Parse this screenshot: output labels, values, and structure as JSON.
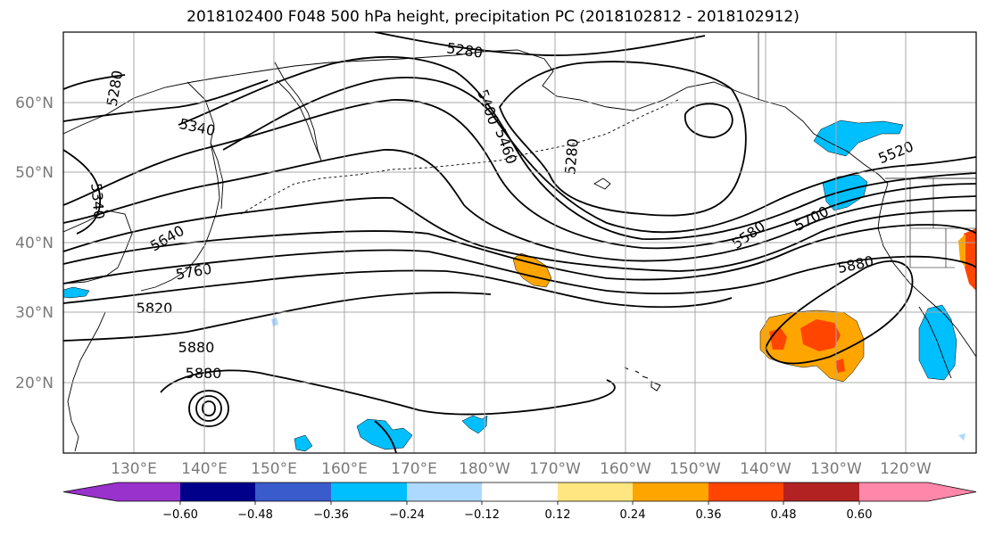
{
  "title": "2018102400 F048 500 hPa height, precipitation PC (2018102812 - 2018102912)",
  "lat_labels": [
    "60°N",
    "50°N",
    "40°N",
    "30°N",
    "20°N"
  ],
  "lon_labels": [
    "130°E",
    "140°E",
    "150°E",
    "160°E",
    "170°E",
    "180°W",
    "170°W",
    "160°W",
    "150°W",
    "140°W",
    "130°W",
    "120°W"
  ],
  "contour_labels": [
    "5280",
    "5280",
    "5280",
    "5340",
    "5340",
    "5400",
    "5460",
    "5520",
    "5580",
    "5640",
    "5700",
    "5760",
    "5820",
    "5880",
    "5880",
    "5880"
  ],
  "colorbar": {
    "colors": [
      "#9932cc",
      "#00008b",
      "#3a5bcc",
      "#00bfff",
      "#add8ff",
      "#ffffff",
      "#ffe680",
      "#ffa500",
      "#ff4500",
      "#b22222",
      "#ff88aa"
    ],
    "ticks": [
      "−0.60",
      "−0.48",
      "−0.36",
      "−0.24",
      "−0.12",
      "0.12",
      "0.24",
      "0.36",
      "0.48",
      "0.60"
    ]
  }
}
